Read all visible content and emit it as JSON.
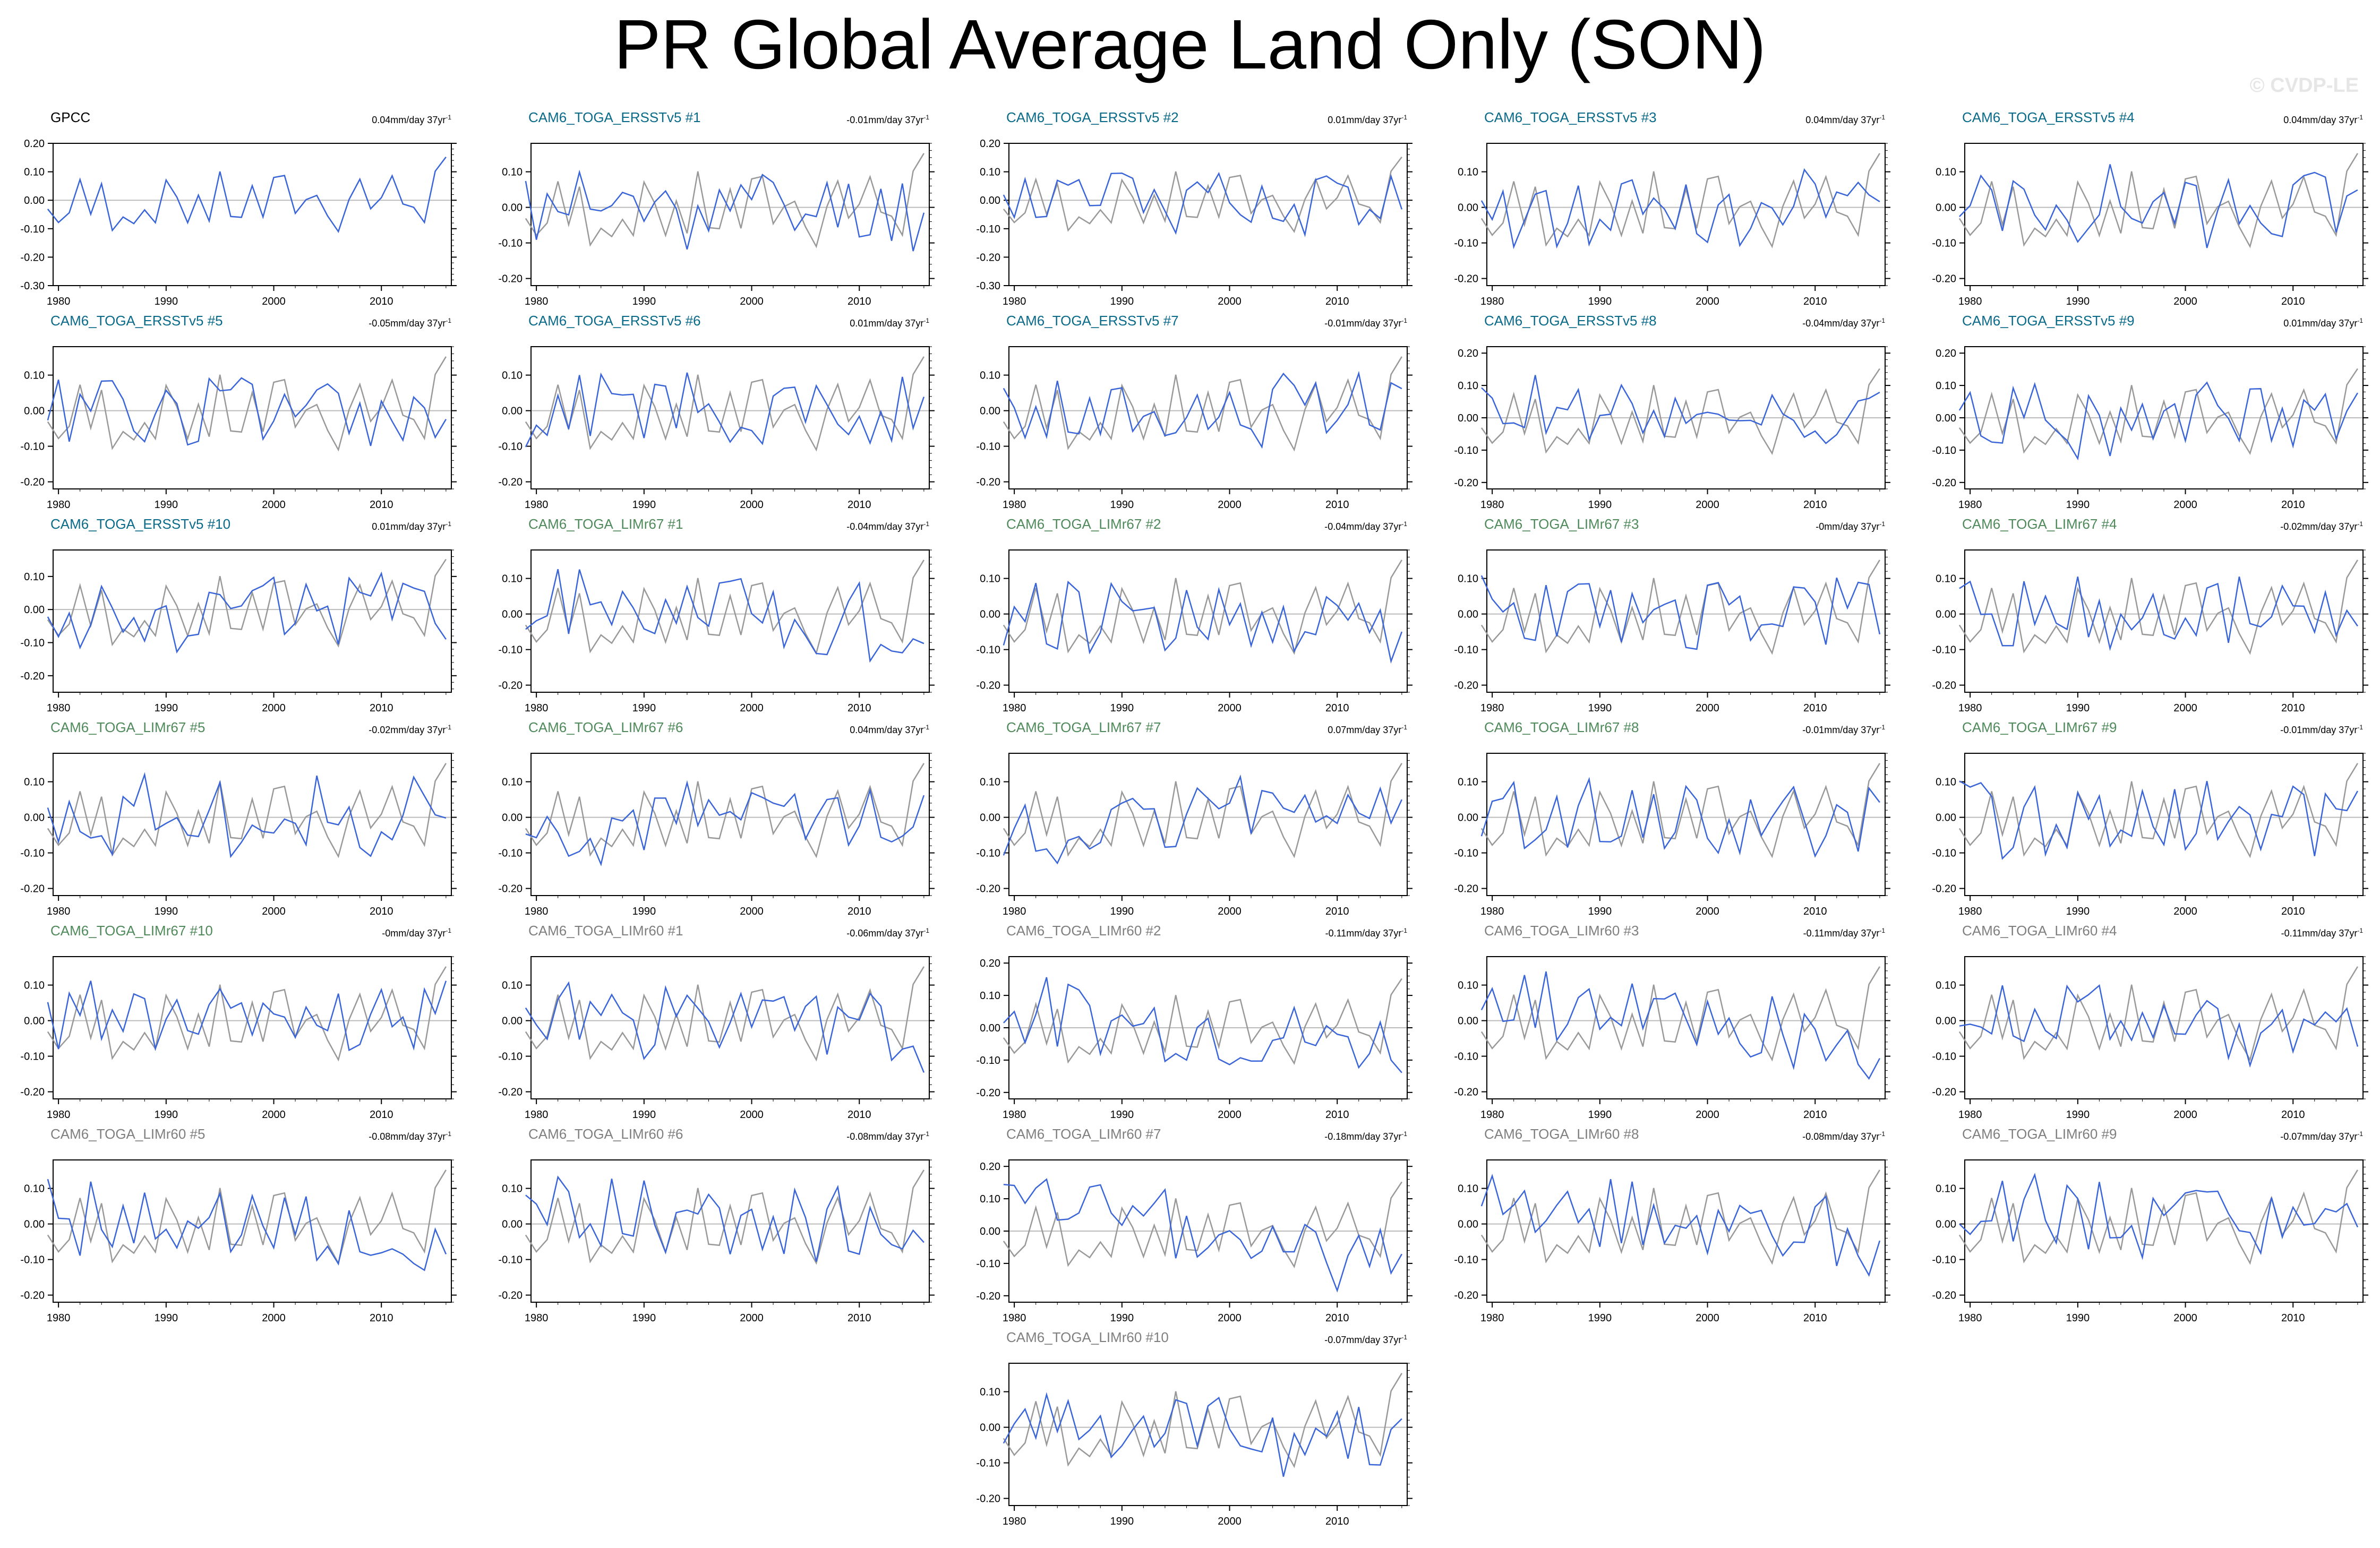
{
  "title": "PR Global Average Land Only (SON)",
  "watermark": "© CVDP-LE",
  "colors": {
    "model_line": "#3a65d8",
    "obs_line": "#999999",
    "zero_line": "#bbbbbb",
    "ersst_title": "#0a6a8a",
    "limr67_title": "#4f8a5b",
    "limr60_title": "#7f7f7f",
    "obs_title": "#000000"
  },
  "trend_units": "mm/day 37yr",
  "trend_exponent": "-1",
  "chart_data": {
    "type": "line",
    "years_range": [
      1979,
      2016
    ],
    "xlim": [
      1979.5,
      2016.5
    ],
    "x_ticks": [
      "1980",
      "1990",
      "2000",
      "2010"
    ],
    "observed_series": "GPCC",
    "panels": [
      {
        "name": "GPCC",
        "trend": "0.04",
        "group": "obs",
        "ylim": [
          -0.3,
          0.2
        ],
        "yticks": [
          "0.20",
          "0.10",
          "0.00",
          "-0.10",
          "-0.20",
          "-0.30"
        ],
        "seed": 101
      },
      {
        "name": "CAM6_TOGA_ERSSTv5 #1",
        "trend": "-0.01",
        "group": "ersst",
        "ylim": [
          -0.22,
          0.18
        ],
        "yticks": [
          "0.10",
          "0.00",
          "-0.10",
          "-0.20"
        ],
        "seed": 11
      },
      {
        "name": "CAM6_TOGA_ERSSTv5 #2",
        "trend": "0.01",
        "group": "ersst",
        "ylim": [
          -0.3,
          0.2
        ],
        "yticks": [
          "0.20",
          "0.10",
          "0.00",
          "-0.10",
          "-0.20",
          "-0.30"
        ],
        "seed": 12
      },
      {
        "name": "CAM6_TOGA_ERSSTv5 #3",
        "trend": "0.04",
        "group": "ersst",
        "ylim": [
          -0.22,
          0.18
        ],
        "yticks": [
          "0.10",
          "0.00",
          "-0.10",
          "-0.20"
        ],
        "seed": 13
      },
      {
        "name": "CAM6_TOGA_ERSSTv5 #4",
        "trend": "0.04",
        "group": "ersst",
        "ylim": [
          -0.22,
          0.18
        ],
        "yticks": [
          "0.10",
          "0.00",
          "-0.10",
          "-0.20"
        ],
        "seed": 14
      },
      {
        "name": "CAM6_TOGA_ERSSTv5 #5",
        "trend": "-0.05",
        "group": "ersst",
        "ylim": [
          -0.22,
          0.18
        ],
        "yticks": [
          "0.10",
          "0.00",
          "-0.10",
          "-0.20"
        ],
        "seed": 15
      },
      {
        "name": "CAM6_TOGA_ERSSTv5 #6",
        "trend": "0.01",
        "group": "ersst",
        "ylim": [
          -0.22,
          0.18
        ],
        "yticks": [
          "0.10",
          "0.00",
          "-0.10",
          "-0.20"
        ],
        "seed": 16
      },
      {
        "name": "CAM6_TOGA_ERSSTv5 #7",
        "trend": "-0.01",
        "group": "ersst",
        "ylim": [
          -0.22,
          0.18
        ],
        "yticks": [
          "0.10",
          "0.00",
          "-0.10",
          "-0.20"
        ],
        "seed": 17
      },
      {
        "name": "CAM6_TOGA_ERSSTv5 #8",
        "trend": "-0.04",
        "group": "ersst",
        "ylim": [
          -0.22,
          0.22
        ],
        "yticks": [
          "0.20",
          "0.10",
          "0.00",
          "-0.10",
          "-0.20"
        ],
        "seed": 18
      },
      {
        "name": "CAM6_TOGA_ERSSTv5 #9",
        "trend": "0.01",
        "group": "ersst",
        "ylim": [
          -0.22,
          0.22
        ],
        "yticks": [
          "0.20",
          "0.10",
          "0.00",
          "-0.10",
          "-0.20"
        ],
        "seed": 19
      },
      {
        "name": "CAM6_TOGA_ERSSTv5 #10",
        "trend": "0.01",
        "group": "ersst",
        "ylim": [
          -0.25,
          0.18
        ],
        "yticks": [
          "0.10",
          "0.00",
          "-0.10",
          "-0.20"
        ],
        "seed": 20
      },
      {
        "name": "CAM6_TOGA_LIMr67 #1",
        "trend": "-0.04",
        "group": "limr67",
        "ylim": [
          -0.22,
          0.18
        ],
        "yticks": [
          "0.10",
          "0.00",
          "-0.10",
          "-0.20"
        ],
        "seed": 21
      },
      {
        "name": "CAM6_TOGA_LIMr67 #2",
        "trend": "-0.04",
        "group": "limr67",
        "ylim": [
          -0.22,
          0.18
        ],
        "yticks": [
          "0.10",
          "0.00",
          "-0.10",
          "-0.20"
        ],
        "seed": 22
      },
      {
        "name": "CAM6_TOGA_LIMr67 #3",
        "trend": "-0",
        "group": "limr67",
        "ylim": [
          -0.22,
          0.18
        ],
        "yticks": [
          "0.10",
          "0.00",
          "-0.10",
          "-0.20"
        ],
        "seed": 23
      },
      {
        "name": "CAM6_TOGA_LIMr67 #4",
        "trend": "-0.02",
        "group": "limr67",
        "ylim": [
          -0.22,
          0.18
        ],
        "yticks": [
          "0.10",
          "0.00",
          "-0.10",
          "-0.20"
        ],
        "seed": 24
      },
      {
        "name": "CAM6_TOGA_LIMr67 #5",
        "trend": "-0.02",
        "group": "limr67",
        "ylim": [
          -0.22,
          0.18
        ],
        "yticks": [
          "0.10",
          "0.00",
          "-0.10",
          "-0.20"
        ],
        "seed": 25
      },
      {
        "name": "CAM6_TOGA_LIMr67 #6",
        "trend": "0.04",
        "group": "limr67",
        "ylim": [
          -0.22,
          0.18
        ],
        "yticks": [
          "0.10",
          "0.00",
          "-0.10",
          "-0.20"
        ],
        "seed": 26
      },
      {
        "name": "CAM6_TOGA_LIMr67 #7",
        "trend": "0.07",
        "group": "limr67",
        "ylim": [
          -0.22,
          0.18
        ],
        "yticks": [
          "0.10",
          "0.00",
          "-0.10",
          "-0.20"
        ],
        "seed": 27
      },
      {
        "name": "CAM6_TOGA_LIMr67 #8",
        "trend": "-0.01",
        "group": "limr67",
        "ylim": [
          -0.22,
          0.18
        ],
        "yticks": [
          "0.10",
          "0.00",
          "-0.10",
          "-0.20"
        ],
        "seed": 28
      },
      {
        "name": "CAM6_TOGA_LIMr67 #9",
        "trend": "-0.01",
        "group": "limr67",
        "ylim": [
          -0.22,
          0.18
        ],
        "yticks": [
          "0.10",
          "0.00",
          "-0.10",
          "-0.20"
        ],
        "seed": 29
      },
      {
        "name": "CAM6_TOGA_LIMr67 #10",
        "trend": "-0",
        "group": "limr67",
        "ylim": [
          -0.22,
          0.18
        ],
        "yticks": [
          "0.10",
          "0.00",
          "-0.10",
          "-0.20"
        ],
        "seed": 30
      },
      {
        "name": "CAM6_TOGA_LIMr60 #1",
        "trend": "-0.06",
        "group": "limr60",
        "ylim": [
          -0.22,
          0.18
        ],
        "yticks": [
          "0.10",
          "0.00",
          "-0.10",
          "-0.20"
        ],
        "seed": 31
      },
      {
        "name": "CAM6_TOGA_LIMr60 #2",
        "trend": "-0.11",
        "group": "limr60",
        "ylim": [
          -0.22,
          0.22
        ],
        "yticks": [
          "0.20",
          "0.10",
          "0.00",
          "-0.10",
          "-0.20"
        ],
        "seed": 32
      },
      {
        "name": "CAM6_TOGA_LIMr60 #3",
        "trend": "-0.11",
        "group": "limr60",
        "ylim": [
          -0.22,
          0.18
        ],
        "yticks": [
          "0.10",
          "0.00",
          "-0.10",
          "-0.20"
        ],
        "seed": 33
      },
      {
        "name": "CAM6_TOGA_LIMr60 #4",
        "trend": "-0.11",
        "group": "limr60",
        "ylim": [
          -0.22,
          0.18
        ],
        "yticks": [
          "0.10",
          "0.00",
          "-0.10",
          "-0.20"
        ],
        "seed": 34
      },
      {
        "name": "CAM6_TOGA_LIMr60 #5",
        "trend": "-0.08",
        "group": "limr60",
        "ylim": [
          -0.22,
          0.18
        ],
        "yticks": [
          "0.10",
          "0.00",
          "-0.10",
          "-0.20"
        ],
        "seed": 35
      },
      {
        "name": "CAM6_TOGA_LIMr60 #6",
        "trend": "-0.08",
        "group": "limr60",
        "ylim": [
          -0.22,
          0.18
        ],
        "yticks": [
          "0.10",
          "0.00",
          "-0.10",
          "-0.20"
        ],
        "seed": 36
      },
      {
        "name": "CAM6_TOGA_LIMr60 #7",
        "trend": "-0.18",
        "group": "limr60",
        "ylim": [
          -0.22,
          0.22
        ],
        "yticks": [
          "0.20",
          "0.10",
          "0.00",
          "-0.10",
          "-0.20"
        ],
        "seed": 37
      },
      {
        "name": "CAM6_TOGA_LIMr60 #8",
        "trend": "-0.08",
        "group": "limr60",
        "ylim": [
          -0.22,
          0.18
        ],
        "yticks": [
          "0.10",
          "0.00",
          "-0.10",
          "-0.20"
        ],
        "seed": 38
      },
      {
        "name": "CAM6_TOGA_LIMr60 #9",
        "trend": "-0.07",
        "group": "limr60",
        "ylim": [
          -0.22,
          0.18
        ],
        "yticks": [
          "0.10",
          "0.00",
          "-0.10",
          "-0.20"
        ],
        "seed": 39
      },
      {
        "name": "CAM6_TOGA_LIMr60 #10",
        "trend": "-0.07",
        "group": "limr60",
        "ylim": [
          -0.22,
          0.18
        ],
        "yticks": [
          "0.10",
          "0.00",
          "-0.10",
          "-0.20"
        ],
        "seed": 40
      }
    ]
  }
}
